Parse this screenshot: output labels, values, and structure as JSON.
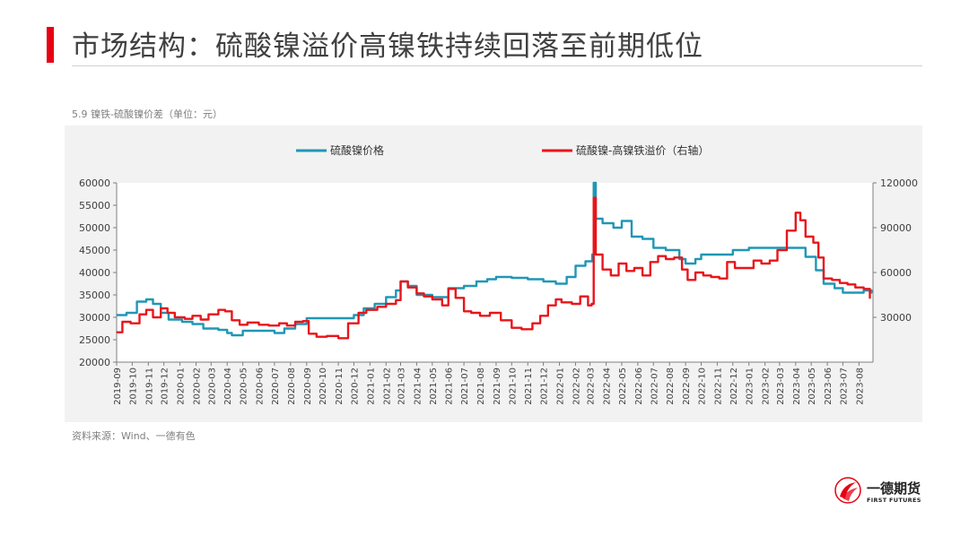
{
  "header": {
    "title": "市场结构：硫酸镍溢价高镍铁持续回落至前期低位",
    "accent_color": "#e60012"
  },
  "chart_caption": "5.9 镍铁-硫酸镍价差（单位：元）",
  "source": "资料来源：Wind、一德有色",
  "logo": {
    "name": "一德期货",
    "name_en": "FIRST FUTURES",
    "icon": "first-futures-logo-icon"
  },
  "chart_data": {
    "type": "line",
    "title": "",
    "x_tick_labels": [
      "2019-09",
      "2019-10",
      "2019-11",
      "2019-12",
      "2020-01",
      "2020-02",
      "2020-03",
      "2020-04",
      "2020-05",
      "2020-06",
      "2020-07",
      "2020-08",
      "2020-09",
      "2020-10",
      "2020-11",
      "2020-12",
      "2021-01",
      "2021-02",
      "2021-03",
      "2021-04",
      "2021-05",
      "2021-06",
      "2021-07",
      "2021-08",
      "2021-09",
      "2021-10",
      "2021-11",
      "2021-12",
      "2022-01",
      "2022-02",
      "2022-03",
      "2022-04",
      "2022-05",
      "2022-06",
      "2022-07",
      "2022-08",
      "2022-09",
      "2022-10",
      "2022-11",
      "2022-12",
      "2023-01",
      "2023-02",
      "2023-03",
      "2023-04",
      "2023-05",
      "2023-06",
      "2023-07",
      "2023-08"
    ],
    "y_left": {
      "range": [
        20000,
        60000
      ],
      "ticks": [
        20000,
        25000,
        30000,
        35000,
        40000,
        45000,
        50000,
        55000,
        60000
      ]
    },
    "y_right": {
      "range": [
        0,
        120000
      ],
      "ticks": [
        30000,
        60000,
        90000,
        120000
      ],
      "label": ""
    },
    "legend_position": "top",
    "grid": false,
    "series": [
      {
        "name": "硫酸镍价格",
        "axis": "left",
        "color": "#1f97b5",
        "points": [
          [
            "2019-09-02",
            30500
          ],
          [
            "2019-09-20",
            31000
          ],
          [
            "2019-10-10",
            33500
          ],
          [
            "2019-10-28",
            34000
          ],
          [
            "2019-11-10",
            33000
          ],
          [
            "2019-11-25",
            31000
          ],
          [
            "2019-12-10",
            29500
          ],
          [
            "2020-01-05",
            29000
          ],
          [
            "2020-01-25",
            28500
          ],
          [
            "2020-02-15",
            27500
          ],
          [
            "2020-03-15",
            27200
          ],
          [
            "2020-04-01",
            26500
          ],
          [
            "2020-04-10",
            26000
          ],
          [
            "2020-05-01",
            27000
          ],
          [
            "2020-06-01",
            27000
          ],
          [
            "2020-07-01",
            26500
          ],
          [
            "2020-07-20",
            27500
          ],
          [
            "2020-08-10",
            28500
          ],
          [
            "2020-09-01",
            29800
          ],
          [
            "2020-10-01",
            29800
          ],
          [
            "2020-11-01",
            29800
          ],
          [
            "2020-12-01",
            30500
          ],
          [
            "2020-12-20",
            32000
          ],
          [
            "2021-01-10",
            33000
          ],
          [
            "2021-02-01",
            34500
          ],
          [
            "2021-02-20",
            36000
          ],
          [
            "2021-03-01",
            38000
          ],
          [
            "2021-03-15",
            37000
          ],
          [
            "2021-04-01",
            35000
          ],
          [
            "2021-05-01",
            34500
          ],
          [
            "2021-06-01",
            36500
          ],
          [
            "2021-07-01",
            37000
          ],
          [
            "2021-07-25",
            38000
          ],
          [
            "2021-08-15",
            38500
          ],
          [
            "2021-09-01",
            39000
          ],
          [
            "2021-10-01",
            38800
          ],
          [
            "2021-11-01",
            38500
          ],
          [
            "2021-12-01",
            38000
          ],
          [
            "2021-12-25",
            37500
          ],
          [
            "2022-01-15",
            39000
          ],
          [
            "2022-02-01",
            41500
          ],
          [
            "2022-02-20",
            42500
          ],
          [
            "2022-03-05",
            44000
          ],
          [
            "2022-03-08",
            60000
          ],
          [
            "2022-03-12",
            52000
          ],
          [
            "2022-03-25",
            51000
          ],
          [
            "2022-04-15",
            50000
          ],
          [
            "2022-05-01",
            51500
          ],
          [
            "2022-05-20",
            48000
          ],
          [
            "2022-06-10",
            47500
          ],
          [
            "2022-07-01",
            45500
          ],
          [
            "2022-07-25",
            45000
          ],
          [
            "2022-08-20",
            43000
          ],
          [
            "2022-09-01",
            42000
          ],
          [
            "2022-09-20",
            43000
          ],
          [
            "2022-10-01",
            44000
          ],
          [
            "2022-11-01",
            44000
          ],
          [
            "2022-12-01",
            45000
          ],
          [
            "2023-01-01",
            45500
          ],
          [
            "2023-02-01",
            45500
          ],
          [
            "2023-03-01",
            45500
          ],
          [
            "2023-04-01",
            45500
          ],
          [
            "2023-04-20",
            43500
          ],
          [
            "2023-05-10",
            40500
          ],
          [
            "2023-05-25",
            37500
          ],
          [
            "2023-06-15",
            36500
          ],
          [
            "2023-07-01",
            35500
          ],
          [
            "2023-07-25",
            35500
          ],
          [
            "2023-08-10",
            36000
          ],
          [
            "2023-08-25",
            35500
          ]
        ]
      },
      {
        "name": "硫酸镍-高镍铁溢价（右轴）",
        "axis": "right",
        "color": "#e8151b",
        "points": [
          [
            "2019-09-02",
            20000
          ],
          [
            "2019-09-12",
            27000
          ],
          [
            "2019-09-28",
            26000
          ],
          [
            "2019-10-15",
            32000
          ],
          [
            "2019-10-28",
            35000
          ],
          [
            "2019-11-10",
            30000
          ],
          [
            "2019-11-25",
            36000
          ],
          [
            "2019-12-08",
            33000
          ],
          [
            "2019-12-22",
            30000
          ],
          [
            "2020-01-10",
            29000
          ],
          [
            "2020-01-25",
            31000
          ],
          [
            "2020-02-10",
            28500
          ],
          [
            "2020-02-25",
            32000
          ],
          [
            "2020-03-15",
            35000
          ],
          [
            "2020-03-28",
            34000
          ],
          [
            "2020-04-10",
            28000
          ],
          [
            "2020-04-25",
            25000
          ],
          [
            "2020-05-10",
            26500
          ],
          [
            "2020-06-01",
            25000
          ],
          [
            "2020-06-20",
            24500
          ],
          [
            "2020-07-10",
            26000
          ],
          [
            "2020-07-25",
            24500
          ],
          [
            "2020-08-10",
            27000
          ],
          [
            "2020-08-25",
            27500
          ],
          [
            "2020-09-05",
            19000
          ],
          [
            "2020-09-20",
            17000
          ],
          [
            "2020-10-10",
            17500
          ],
          [
            "2020-11-01",
            16000
          ],
          [
            "2020-11-20",
            26000
          ],
          [
            "2020-12-10",
            33000
          ],
          [
            "2020-12-25",
            35000
          ],
          [
            "2021-01-15",
            37000
          ],
          [
            "2021-02-01",
            39000
          ],
          [
            "2021-02-20",
            41500
          ],
          [
            "2021-03-01",
            54000
          ],
          [
            "2021-03-15",
            50000
          ],
          [
            "2021-04-01",
            46000
          ],
          [
            "2021-04-15",
            44000
          ],
          [
            "2021-05-01",
            42000
          ],
          [
            "2021-05-20",
            38000
          ],
          [
            "2021-06-01",
            49000
          ],
          [
            "2021-06-15",
            43000
          ],
          [
            "2021-07-01",
            34000
          ],
          [
            "2021-07-15",
            33000
          ],
          [
            "2021-08-01",
            31000
          ],
          [
            "2021-08-20",
            33000
          ],
          [
            "2021-09-10",
            28000
          ],
          [
            "2021-10-01",
            23000
          ],
          [
            "2021-10-20",
            22000
          ],
          [
            "2021-11-10",
            26000
          ],
          [
            "2021-11-25",
            31000
          ],
          [
            "2021-12-10",
            38000
          ],
          [
            "2021-12-25",
            42000
          ],
          [
            "2022-01-05",
            40000
          ],
          [
            "2022-01-25",
            39000
          ],
          [
            "2022-02-10",
            44000
          ],
          [
            "2022-02-25",
            38000
          ],
          [
            "2022-03-04",
            39000
          ],
          [
            "2022-03-08",
            110000
          ],
          [
            "2022-03-12",
            72000
          ],
          [
            "2022-03-25",
            62000
          ],
          [
            "2022-04-10",
            58000
          ],
          [
            "2022-04-25",
            66000
          ],
          [
            "2022-05-10",
            61000
          ],
          [
            "2022-05-25",
            63000
          ],
          [
            "2022-06-10",
            58000
          ],
          [
            "2022-06-25",
            67000
          ],
          [
            "2022-07-10",
            71000
          ],
          [
            "2022-07-25",
            69000
          ],
          [
            "2022-08-10",
            70000
          ],
          [
            "2022-08-25",
            62000
          ],
          [
            "2022-09-05",
            55000
          ],
          [
            "2022-09-20",
            60000
          ],
          [
            "2022-10-05",
            58000
          ],
          [
            "2022-10-20",
            57000
          ],
          [
            "2022-11-05",
            56000
          ],
          [
            "2022-11-20",
            67000
          ],
          [
            "2022-12-05",
            63000
          ],
          [
            "2022-12-20",
            63000
          ],
          [
            "2023-01-10",
            68000
          ],
          [
            "2023-01-25",
            66000
          ],
          [
            "2023-02-10",
            68000
          ],
          [
            "2023-02-25",
            75000
          ],
          [
            "2023-03-15",
            88000
          ],
          [
            "2023-04-01",
            100000
          ],
          [
            "2023-04-10",
            95000
          ],
          [
            "2023-04-20",
            84000
          ],
          [
            "2023-05-05",
            80000
          ],
          [
            "2023-05-15",
            70000
          ],
          [
            "2023-05-25",
            56000
          ],
          [
            "2023-06-10",
            55000
          ],
          [
            "2023-06-25",
            53000
          ],
          [
            "2023-07-10",
            52000
          ],
          [
            "2023-07-25",
            50000
          ],
          [
            "2023-08-10",
            49000
          ],
          [
            "2023-08-22",
            43000
          ]
        ]
      }
    ]
  }
}
